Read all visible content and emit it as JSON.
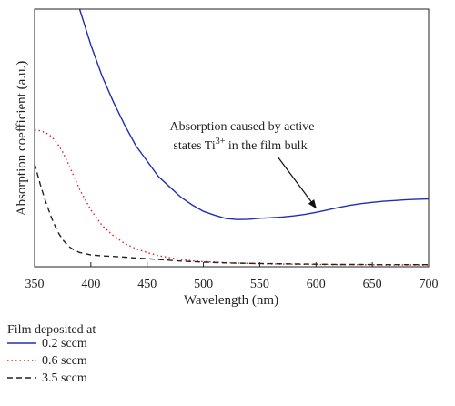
{
  "chart_data": {
    "type": "line",
    "xlabel": "Wavelength (nm)",
    "ylabel": "Absorption coefficient (a.u.)",
    "xlim": [
      350,
      700
    ],
    "ylim": [
      0,
      1.0
    ],
    "xticks": [
      350,
      400,
      450,
      500,
      550,
      600,
      650,
      700
    ],
    "grid": false,
    "legend_title": "Film deposited at",
    "legend_position": "below",
    "annotation": {
      "line1": "Absorption caused by active",
      "line2_prefix": "states Ti",
      "line2_sup": "3+",
      "line2_suffix": " in the film bulk",
      "arrow_target": [
        600,
        0.21
      ]
    },
    "series": [
      {
        "name": "0.2 sccm",
        "color": "#1f2fb0",
        "style": "solid",
        "x": [
          390,
          395,
          400,
          410,
          420,
          430,
          440,
          450,
          460,
          470,
          480,
          490,
          500,
          510,
          520,
          530,
          540,
          550,
          560,
          570,
          580,
          590,
          600,
          610,
          620,
          630,
          640,
          650,
          660,
          670,
          680,
          690,
          700
        ],
        "y": [
          1.0,
          0.93,
          0.86,
          0.74,
          0.64,
          0.55,
          0.47,
          0.41,
          0.35,
          0.31,
          0.27,
          0.24,
          0.215,
          0.2,
          0.187,
          0.183,
          0.184,
          0.188,
          0.19,
          0.193,
          0.197,
          0.203,
          0.211,
          0.22,
          0.23,
          0.238,
          0.245,
          0.25,
          0.254,
          0.257,
          0.26,
          0.262,
          0.263
        ]
      },
      {
        "name": "0.6 sccm",
        "color": "#e0202a",
        "style": "dotted",
        "x": [
          350,
          355,
          360,
          365,
          370,
          375,
          380,
          385,
          390,
          400,
          410,
          420,
          430,
          440,
          450,
          460,
          470,
          480,
          490,
          500,
          520,
          540,
          560,
          580,
          600,
          620,
          640,
          660,
          680,
          700
        ],
        "y": [
          0.53,
          0.528,
          0.52,
          0.505,
          0.48,
          0.445,
          0.4,
          0.35,
          0.3,
          0.22,
          0.16,
          0.12,
          0.09,
          0.07,
          0.055,
          0.043,
          0.035,
          0.028,
          0.023,
          0.02,
          0.016,
          0.013,
          0.011,
          0.01,
          0.009,
          0.008,
          0.008,
          0.007,
          0.007,
          0.007
        ]
      },
      {
        "name": "3.5 sccm",
        "color": "#222222",
        "style": "dashed",
        "x": [
          350,
          355,
          360,
          365,
          370,
          375,
          380,
          385,
          390,
          400,
          410,
          420,
          430,
          440,
          450,
          460,
          470,
          480,
          500,
          520,
          540,
          560,
          580,
          600,
          620,
          640,
          660,
          680,
          700
        ],
        "y": [
          0.4,
          0.32,
          0.25,
          0.19,
          0.14,
          0.105,
          0.08,
          0.065,
          0.055,
          0.046,
          0.042,
          0.04,
          0.037,
          0.034,
          0.031,
          0.028,
          0.025,
          0.022,
          0.018,
          0.015,
          0.013,
          0.012,
          0.011,
          0.01,
          0.009,
          0.009,
          0.008,
          0.008,
          0.008
        ]
      }
    ]
  }
}
